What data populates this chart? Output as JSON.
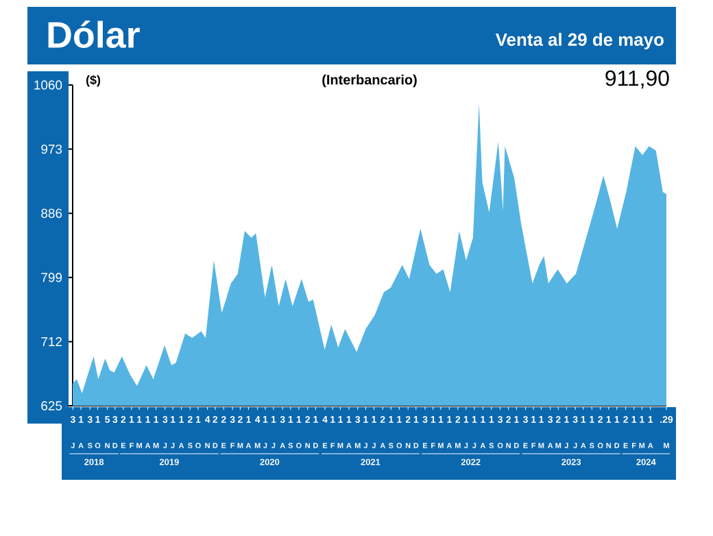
{
  "chart_data": {
    "type": "area",
    "title": "Dólar",
    "subtitle": "Venta al 29 de mayo",
    "ylabel": "($)",
    "color": "#56b4e3",
    "annotations": [
      "(Interbancario)",
      "911,90",
      "J",
      "A",
      "S",
      "O",
      "N",
      "D",
      "E",
      "F",
      "M",
      "A",
      "M",
      "J",
      "J",
      "A",
      "S",
      "O",
      "N",
      "D",
      "E",
      "F",
      "M",
      "A",
      "M",
      "J",
      "J",
      "A",
      "S",
      "O",
      "N",
      "D",
      "E",
      "F",
      "M",
      "A",
      "M",
      "J",
      "J",
      "A",
      "S",
      "O",
      "N",
      "D",
      "E",
      "F",
      "M",
      "A",
      "M",
      "J",
      "J",
      "A",
      "S",
      "O",
      "N",
      "D",
      "E",
      "F",
      "M",
      "A",
      "M",
      "J",
      "J",
      "A",
      "S",
      "O",
      "N",
      "D",
      "E",
      "F",
      "M",
      "A",
      "M",
      "2018",
      "2019",
      "2020",
      "2021",
      "2022",
      "2023",
      "2024"
    ],
    "xlim": [
      "2018-07-02",
      "2024-05-29"
    ],
    "ylim": [
      625,
      1060
    ],
    "yticks": [
      625,
      712,
      799,
      886,
      973,
      1060
    ],
    "xticks": [
      {
        "value": "2018-07-03",
        "label": "3"
      },
      {
        "value": "2018-08-01",
        "label": "1"
      },
      {
        "value": "2018-09-03",
        "label": "3"
      },
      {
        "value": "2018-10-01",
        "label": "1"
      },
      {
        "value": "2018-11-05",
        "label": "5"
      },
      {
        "value": "2018-12-03",
        "label": "3"
      },
      {
        "value": "2019-01-02",
        "label": "2"
      },
      {
        "value": "2019-02-01",
        "label": "1"
      },
      {
        "value": "2019-03-01",
        "label": "1"
      },
      {
        "value": "2019-04-01",
        "label": "1"
      },
      {
        "value": "2019-05-01",
        "label": "1"
      },
      {
        "value": "2019-06-03",
        "label": "3"
      },
      {
        "value": "2019-07-01",
        "label": "1"
      },
      {
        "value": "2019-08-01",
        "label": "1"
      },
      {
        "value": "2019-09-02",
        "label": "2"
      },
      {
        "value": "2019-10-01",
        "label": "1"
      },
      {
        "value": "2019-11-04",
        "label": "4"
      },
      {
        "value": "2019-12-02",
        "label": "2"
      },
      {
        "value": "2020-01-02",
        "label": "2"
      },
      {
        "value": "2020-02-03",
        "label": "3"
      },
      {
        "value": "2020-03-02",
        "label": "2"
      },
      {
        "value": "2020-04-01",
        "label": "1"
      },
      {
        "value": "2020-05-04",
        "label": "4"
      },
      {
        "value": "2020-06-01",
        "label": "1"
      },
      {
        "value": "2020-07-01",
        "label": "1"
      },
      {
        "value": "2020-08-03",
        "label": "3"
      },
      {
        "value": "2020-09-01",
        "label": "1"
      },
      {
        "value": "2020-10-01",
        "label": "1"
      },
      {
        "value": "2020-11-02",
        "label": "2"
      },
      {
        "value": "2020-12-01",
        "label": "1"
      },
      {
        "value": "2021-01-04",
        "label": "4"
      },
      {
        "value": "2021-02-01",
        "label": "1"
      },
      {
        "value": "2021-03-01",
        "label": "1"
      },
      {
        "value": "2021-04-01",
        "label": "1"
      },
      {
        "value": "2021-05-03",
        "label": "3"
      },
      {
        "value": "2021-06-01",
        "label": "1"
      },
      {
        "value": "2021-07-01",
        "label": "1"
      },
      {
        "value": "2021-08-02",
        "label": "2"
      },
      {
        "value": "2021-09-01",
        "label": "1"
      },
      {
        "value": "2021-10-01",
        "label": "1"
      },
      {
        "value": "2021-11-02",
        "label": "2"
      },
      {
        "value": "2021-12-01",
        "label": "1"
      },
      {
        "value": "2022-01-03",
        "label": "3"
      },
      {
        "value": "2022-02-01",
        "label": "1"
      },
      {
        "value": "2022-03-01",
        "label": "1"
      },
      {
        "value": "2022-04-01",
        "label": "1"
      },
      {
        "value": "2022-05-02",
        "label": "2"
      },
      {
        "value": "2022-06-01",
        "label": "1"
      },
      {
        "value": "2022-07-01",
        "label": "1"
      },
      {
        "value": "2022-08-01",
        "label": "1"
      },
      {
        "value": "2022-09-01",
        "label": "1"
      },
      {
        "value": "2022-10-03",
        "label": "3"
      },
      {
        "value": "2022-11-02",
        "label": "2"
      },
      {
        "value": "2022-12-01",
        "label": "1"
      },
      {
        "value": "2023-01-03",
        "label": "3"
      },
      {
        "value": "2023-02-01",
        "label": "1"
      },
      {
        "value": "2023-03-01",
        "label": "1"
      },
      {
        "value": "2023-04-03",
        "label": "3"
      },
      {
        "value": "2023-05-02",
        "label": "2"
      },
      {
        "value": "2023-06-01",
        "label": "1"
      },
      {
        "value": "2023-07-03",
        "label": "3"
      },
      {
        "value": "2023-08-01",
        "label": "1"
      },
      {
        "value": "2023-09-01",
        "label": "1"
      },
      {
        "value": "2023-10-02",
        "label": "2"
      },
      {
        "value": "2023-11-01",
        "label": "1"
      },
      {
        "value": "2023-12-01",
        "label": "1"
      },
      {
        "value": "2024-01-02",
        "label": "2"
      },
      {
        "value": "2024-02-01",
        "label": "1"
      },
      {
        "value": "2024-03-01",
        "label": "1"
      },
      {
        "value": "2024-04-01",
        "label": "1"
      },
      {
        "value": "2024-05-29",
        "label": ".29"
      }
    ],
    "x": [
      "2018-07-02",
      "2018-07-17",
      "2018-08-05",
      "2018-08-26",
      "2018-09-16",
      "2018-10-03",
      "2018-10-28",
      "2018-11-14",
      "2018-11-30",
      "2018-12-28",
      "2019-01-27",
      "2019-02-21",
      "2019-03-27",
      "2019-04-21",
      "2019-06-01",
      "2019-06-26",
      "2019-07-12",
      "2019-08-15",
      "2019-09-09",
      "2019-10-12",
      "2019-10-28",
      "2019-11-27",
      "2019-12-26",
      "2020-01-28",
      "2020-02-22",
      "2020-03-18",
      "2020-04-11",
      "2020-04-28",
      "2020-05-31",
      "2020-06-25",
      "2020-07-20",
      "2020-08-14",
      "2020-09-08",
      "2020-10-11",
      "2020-11-05",
      "2020-11-22",
      "2021-01-03",
      "2021-01-27",
      "2021-02-21",
      "2021-03-18",
      "2021-04-29",
      "2021-06-01",
      "2021-07-04",
      "2021-08-06",
      "2021-08-31",
      "2021-10-12",
      "2021-11-06",
      "2021-12-17",
      "2022-01-19",
      "2022-02-13",
      "2022-03-10",
      "2022-04-04",
      "2022-05-07",
      "2022-06-01",
      "2022-06-26",
      "2022-07-18",
      "2022-07-30",
      "2022-08-24",
      "2022-09-09",
      "2022-09-26",
      "2022-10-13",
      "2022-10-20",
      "2022-11-23",
      "2022-12-18",
      "2023-01-28",
      "2023-02-22",
      "2023-03-11",
      "2023-03-27",
      "2023-04-30",
      "2023-06-02",
      "2023-07-05",
      "2023-08-07",
      "2023-09-09",
      "2023-10-13",
      "2023-11-07",
      "2023-12-02",
      "2024-01-04",
      "2024-02-06",
      "2024-03-03",
      "2024-03-27",
      "2024-04-21",
      "2024-05-16",
      "2024-05-29"
    ],
    "values": [
      655,
      661,
      642,
      667,
      692,
      661,
      689,
      673,
      670,
      692,
      667,
      652,
      680,
      661,
      707,
      680,
      683,
      723,
      717,
      726,
      717,
      822,
      751,
      791,
      804,
      862,
      853,
      859,
      772,
      816,
      760,
      797,
      760,
      797,
      766,
      769,
      701,
      735,
      704,
      729,
      698,
      729,
      748,
      779,
      785,
      816,
      797,
      865,
      816,
      804,
      810,
      779,
      862,
      822,
      853,
      1035,
      928,
      887,
      934,
      983,
      890,
      977,
      934,
      872,
      791,
      816,
      828,
      791,
      810,
      791,
      804,
      847,
      890,
      937,
      903,
      865,
      915,
      977,
      965,
      977,
      971,
      915,
      912
    ]
  }
}
